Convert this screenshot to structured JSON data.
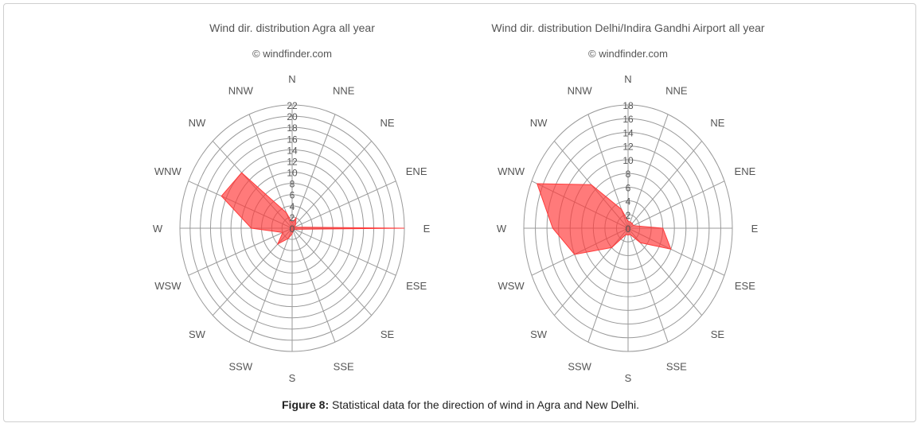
{
  "chart_data": [
    {
      "type": "radar",
      "title": "Wind dir. distribution Agra all year",
      "subtitle": "© windfinder.com",
      "directions": [
        "N",
        "NNE",
        "NE",
        "ENE",
        "E",
        "ESE",
        "SE",
        "SSE",
        "S",
        "SSW",
        "SW",
        "WSW",
        "W",
        "WNW",
        "NW",
        "NNW"
      ],
      "values": [
        1,
        2,
        1,
        0.5,
        22,
        0.5,
        0.5,
        0.5,
        1,
        2,
        4,
        2,
        8,
        15,
        14,
        3
      ],
      "ticks": [
        "2",
        "4",
        "6",
        "8",
        "10",
        "12",
        "14",
        "16",
        "18",
        "20",
        "22"
      ],
      "rlim": [
        0,
        22
      ],
      "grid": true,
      "fill_color": "#ff3b3b"
    },
    {
      "type": "radar",
      "title": "Wind dir. distribution Delhi/Indira Gandhi Airport all year",
      "subtitle": "© windfinder.com",
      "directions": [
        "N",
        "NNE",
        "NE",
        "ENE",
        "E",
        "ESE",
        "SE",
        "SSE",
        "S",
        "SSW",
        "SW",
        "WSW",
        "W",
        "WNW",
        "NW",
        "NNW"
      ],
      "values": [
        1,
        1,
        1,
        1,
        6,
        8,
        3,
        1,
        1,
        1,
        4,
        10,
        13,
        17,
        9,
        3
      ],
      "ticks": [
        "2",
        "4",
        "6",
        "8",
        "10",
        "12",
        "14",
        "16",
        "18"
      ],
      "rlim": [
        0,
        18
      ],
      "grid": true,
      "fill_color": "#ff3b3b"
    }
  ],
  "caption": {
    "label": "Figure 8:",
    "text": "Statistical data for the direction of wind in Agra and New Delhi."
  }
}
